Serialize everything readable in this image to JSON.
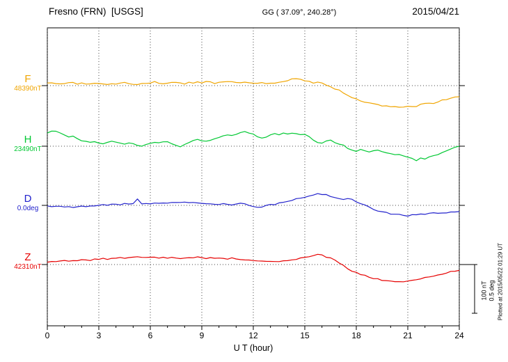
{
  "header": {
    "station": "Fresno (FRN)  [USGS]",
    "coords": "GG ( 37.09°, 240.28°)",
    "date": "2015/04/21"
  },
  "colors": {
    "F": "#f0a500",
    "H": "#00c832",
    "D": "#2222cc",
    "Z": "#e60000",
    "axis": "#000000",
    "grid": "#444444"
  },
  "channels": [
    {
      "id": "F",
      "label": "F",
      "value_label": "48390nT",
      "unit": "nT",
      "color": "#f0a500"
    },
    {
      "id": "H",
      "label": "H",
      "value_label": "23490nT",
      "unit": "nT",
      "color": "#00c832"
    },
    {
      "id": "D",
      "label": "D",
      "value_label": "0.0deg",
      "unit": "deg",
      "color": "#2222cc"
    },
    {
      "id": "Z",
      "label": "Z",
      "value_label": "42310nT",
      "unit": "nT",
      "color": "#e60000"
    }
  ],
  "x_axis": {
    "title": "U T (hour)",
    "ticks": [
      0,
      3,
      6,
      9,
      12,
      15,
      18,
      21,
      24
    ],
    "minor_step": 1,
    "range": [
      0,
      24
    ]
  },
  "scale_bar": {
    "labels": [
      "100 nT",
      "0.5 deg"
    ],
    "nT_per_bar": 100,
    "deg_per_bar": 0.5
  },
  "plotted_at": "Plotted at 2015/05/22 01:29 UT",
  "chart_data": {
    "type": "line",
    "title": "Fresno (FRN) [USGS] magnetogram 2015/04/21",
    "xlabel": "U T (hour)",
    "x_range": [
      0,
      24
    ],
    "x_hours_step": 0.25,
    "grid": "dotted vertical every 3 h, dotted baseline per channel",
    "scale": {
      "nT_per_div": 100,
      "deg_per_div": 0.5
    },
    "series": [
      {
        "name": "F",
        "unit": "nT",
        "baseline": 48390,
        "offsets": [
          5,
          6,
          4,
          3,
          5,
          7,
          6,
          4,
          5,
          3,
          4,
          6,
          5,
          3,
          2,
          4,
          3,
          5,
          7,
          4,
          2,
          3,
          5,
          4,
          6,
          8,
          5,
          3,
          4,
          6,
          7,
          5,
          4,
          6,
          5,
          7,
          6,
          8,
          7,
          5,
          6,
          7,
          9,
          8,
          6,
          7,
          8,
          6,
          5,
          4,
          6,
          5,
          4,
          5,
          6,
          8,
          10,
          13,
          15,
          13,
          10,
          8,
          6,
          7,
          5,
          2,
          -2,
          -6,
          -10,
          -15,
          -20,
          -24,
          -28,
          -31,
          -33,
          -35,
          -37,
          -39,
          -41,
          -42,
          -43,
          -44,
          -45,
          -44,
          -43,
          -44,
          -42,
          -39,
          -37,
          -35,
          -36,
          -33,
          -30,
          -28,
          -26,
          -24,
          -22
        ]
      },
      {
        "name": "H",
        "unit": "nT",
        "baseline": 23490,
        "offsets": [
          28,
          32,
          30,
          26,
          22,
          18,
          20,
          16,
          12,
          10,
          8,
          9,
          7,
          5,
          8,
          10,
          9,
          6,
          4,
          6,
          5,
          2,
          -1,
          3,
          6,
          8,
          7,
          9,
          10,
          6,
          2,
          -2,
          3,
          8,
          12,
          14,
          12,
          10,
          13,
          15,
          18,
          22,
          24,
          22,
          25,
          28,
          30,
          27,
          24,
          20,
          16,
          19,
          23,
          25,
          24,
          26,
          25,
          27,
          26,
          24,
          25,
          20,
          12,
          8,
          6,
          10,
          12,
          8,
          5,
          2,
          -4,
          -8,
          -10,
          -7,
          -9,
          -12,
          -9,
          -7,
          -10,
          -13,
          -15,
          -18,
          -16,
          -19,
          -22,
          -26,
          -29,
          -25,
          -27,
          -23,
          -20,
          -17,
          -14,
          -10,
          -6,
          -2,
          1
        ]
      },
      {
        "name": "D",
        "unit": "deg",
        "baseline": 0.0,
        "offsets": [
          0,
          -0.01,
          -0.015,
          -0.012,
          -0.018,
          -0.015,
          -0.02,
          -0.015,
          -0.01,
          -0.014,
          -0.008,
          -0.005,
          0,
          0.005,
          0.002,
          0.008,
          0.012,
          0.008,
          0.015,
          0.01,
          0.02,
          0.07,
          0.02,
          0.015,
          0.018,
          0.022,
          0.025,
          0.02,
          0.028,
          0.032,
          0.03,
          0.025,
          0.028,
          0.03,
          0.026,
          0.022,
          0.025,
          0.02,
          0.018,
          0.015,
          0.012,
          0.015,
          0.01,
          0.008,
          0.015,
          0.018,
          0.012,
          0.005,
          -0.01,
          -0.02,
          -0.015,
          -0.005,
          0.005,
          0.012,
          0.02,
          0.03,
          0.045,
          0.055,
          0.065,
          0.075,
          0.085,
          0.095,
          0.11,
          0.125,
          0.105,
          0.115,
          0.095,
          0.085,
          0.07,
          0.06,
          0.075,
          0.065,
          0.04,
          0.02,
          0,
          -0.02,
          -0.04,
          -0.055,
          -0.065,
          -0.075,
          -0.085,
          -0.09,
          -0.095,
          -0.1,
          -0.105,
          -0.1,
          -0.095,
          -0.09,
          -0.088,
          -0.085,
          -0.08,
          -0.078,
          -0.075,
          -0.072,
          -0.07,
          -0.068,
          -0.065
        ]
      },
      {
        "name": "Z",
        "unit": "nT",
        "baseline": 42310,
        "offsets": [
          6,
          7,
          5,
          7,
          8,
          7,
          9,
          8,
          9,
          10,
          9,
          11,
          10,
          12,
          11,
          13,
          12,
          14,
          13,
          15,
          14,
          15,
          14,
          15,
          16,
          15,
          14,
          15,
          14,
          15,
          14,
          13,
          14,
          15,
          14,
          15,
          14,
          13,
          14,
          13,
          14,
          13,
          12,
          13,
          12,
          11,
          10,
          9,
          8,
          7,
          6,
          7,
          6,
          5,
          6,
          7,
          8,
          9,
          11,
          13,
          14,
          17,
          19,
          21,
          19,
          16,
          13,
          9,
          4,
          -2,
          -8,
          -13,
          -17,
          -20,
          -23,
          -26,
          -28,
          -30,
          -32,
          -33,
          -34,
          -35,
          -36,
          -35,
          -34,
          -33,
          -31,
          -29,
          -27,
          -25,
          -23,
          -21,
          -19,
          -17,
          -15,
          -13,
          -12
        ]
      }
    ]
  }
}
